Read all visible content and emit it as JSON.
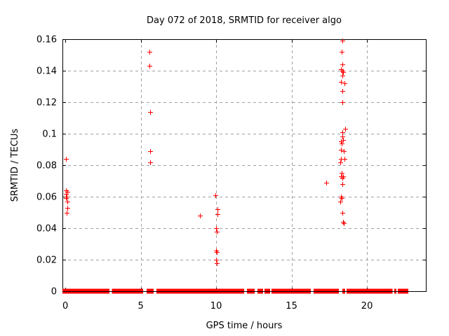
{
  "page": {
    "background": "#ffffff"
  },
  "chart_data": {
    "type": "scatter",
    "title": "Day 072 of 2018, SRMTID for receiver algo",
    "xlabel": "GPS time / hours",
    "ylabel": "SRMTID / TECUs",
    "xlim": [
      -0.19,
      23.95
    ],
    "ylim": [
      0,
      0.16
    ],
    "xticks": [
      0,
      5,
      10,
      15,
      20
    ],
    "xtick_labels": [
      "0",
      "5",
      "10",
      "15",
      "20"
    ],
    "yticks": [
      0,
      0.02,
      0.04,
      0.06,
      0.08,
      0.1,
      0.12,
      0.14,
      0.16
    ],
    "ytick_labels": [
      "0",
      "0.02",
      "0.04",
      "0.06",
      "0.08",
      "0.1",
      "0.12",
      "0.14",
      "0.16"
    ],
    "grid": {
      "show": true,
      "color": "#a0a0a0",
      "dash": "4,4"
    },
    "axis_color": "#000000",
    "marker": {
      "shape": "plus",
      "color": "#ff0000",
      "size": 7
    },
    "legend": {
      "show": false
    },
    "series": [
      {
        "name": "SRMTID",
        "points": [
          [
            0.02,
            0.084
          ],
          [
            0.05,
            0.064
          ],
          [
            0.12,
            0.063
          ],
          [
            0.03,
            0.062
          ],
          [
            0.1,
            0.06
          ],
          [
            0.05,
            0.059
          ],
          [
            0.12,
            0.057
          ],
          [
            0.14,
            0.053
          ],
          [
            0.07,
            0.05
          ],
          [
            5.58,
            0.152
          ],
          [
            5.58,
            0.143
          ],
          [
            5.62,
            0.114
          ],
          [
            5.62,
            0.089
          ],
          [
            5.63,
            0.082
          ],
          [
            8.93,
            0.048
          ],
          [
            9.95,
            0.061
          ],
          [
            10.07,
            0.052
          ],
          [
            10.07,
            0.049
          ],
          [
            10.0,
            0.04
          ],
          [
            10.05,
            0.038
          ],
          [
            10.0,
            0.026
          ],
          [
            10.05,
            0.025
          ],
          [
            10.0,
            0.02
          ],
          [
            10.05,
            0.018
          ],
          [
            17.3,
            0.069
          ],
          [
            18.37,
            0.159
          ],
          [
            18.33,
            0.152
          ],
          [
            18.37,
            0.144
          ],
          [
            18.28,
            0.141
          ],
          [
            18.37,
            0.14
          ],
          [
            18.42,
            0.139
          ],
          [
            18.37,
            0.137
          ],
          [
            18.28,
            0.133
          ],
          [
            18.51,
            0.132
          ],
          [
            18.37,
            0.127
          ],
          [
            18.37,
            0.12
          ],
          [
            18.56,
            0.103
          ],
          [
            18.37,
            0.101
          ],
          [
            18.37,
            0.098
          ],
          [
            18.42,
            0.096
          ],
          [
            18.28,
            0.095
          ],
          [
            18.33,
            0.094
          ],
          [
            18.28,
            0.09
          ],
          [
            18.47,
            0.089
          ],
          [
            18.28,
            0.084
          ],
          [
            18.51,
            0.084
          ],
          [
            18.24,
            0.082
          ],
          [
            18.33,
            0.075
          ],
          [
            18.28,
            0.073
          ],
          [
            18.42,
            0.073
          ],
          [
            18.37,
            0.072
          ],
          [
            18.37,
            0.068
          ],
          [
            18.28,
            0.06
          ],
          [
            18.33,
            0.059
          ],
          [
            18.24,
            0.057
          ],
          [
            18.37,
            0.05
          ],
          [
            18.4,
            0.044
          ],
          [
            18.44,
            0.043
          ]
        ]
      }
    ],
    "zero_band": {
      "value": 0,
      "thickness_px": 7,
      "segments_hours": [
        [
          -0.19,
          2.93
        ],
        [
          3.1,
          5.16
        ],
        [
          5.4,
          5.86
        ],
        [
          6.05,
          11.86
        ],
        [
          12.05,
          12.56
        ],
        [
          12.74,
          13.12
        ],
        [
          13.2,
          13.58
        ],
        [
          13.67,
          16.28
        ],
        [
          16.47,
          18.14
        ],
        [
          18.37,
          18.56
        ],
        [
          18.65,
          21.7
        ],
        [
          21.8,
          21.95
        ],
        [
          22.05,
          22.74
        ]
      ]
    }
  }
}
